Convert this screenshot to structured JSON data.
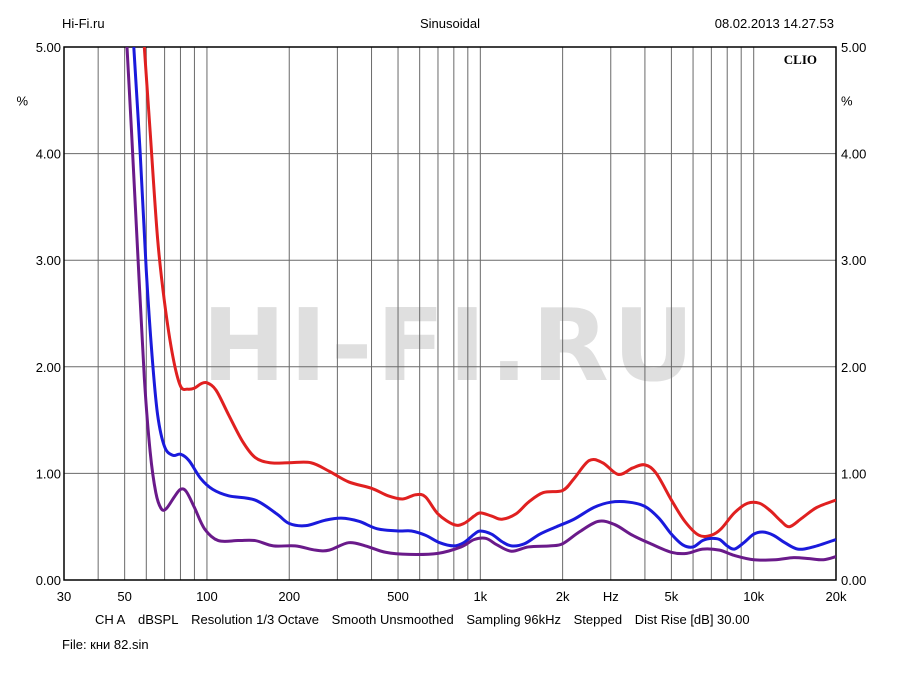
{
  "header": {
    "site": "Hi-Fi.ru",
    "mode": "Sinusoidal",
    "datetime": "08.02.2013 14.27.53"
  },
  "brand_label": "CLIO",
  "watermark_text": "HI-FI.RU",
  "settings": {
    "channel": "CH A",
    "unit": "dBSPL",
    "resolution": "Resolution 1/3 Octave",
    "smoothing": "Smooth Unsmoothed",
    "sampling": "Sampling 96kHz",
    "stepping": "Stepped",
    "dist_rise": "Dist Rise [dB] 30.00"
  },
  "file_label": "File: кни 82.sin",
  "chart_data": {
    "type": "line",
    "x_scale": "log",
    "xlim": [
      30,
      20000
    ],
    "ylim": [
      0,
      5
    ],
    "grid": true,
    "x_tick_labels": [
      {
        "value": 30,
        "label": "30"
      },
      {
        "value": 50,
        "label": "50"
      },
      {
        "value": 100,
        "label": "100"
      },
      {
        "value": 200,
        "label": "200"
      },
      {
        "value": 500,
        "label": "500"
      },
      {
        "value": 1000,
        "label": "1k"
      },
      {
        "value": 2000,
        "label": "2k"
      },
      {
        "value": 5000,
        "label": "5k"
      },
      {
        "value": 10000,
        "label": "10k"
      },
      {
        "value": 20000,
        "label": "20k"
      }
    ],
    "x_unit_label": "Hz",
    "y_ticks": [
      "0.00",
      "1.00",
      "2.00",
      "3.00",
      "4.00",
      "5.00"
    ],
    "y_unit_label": "%",
    "series": [
      {
        "color": "#e02020",
        "points": [
          [
            59,
            5.0
          ],
          [
            62,
            4.2
          ],
          [
            66,
            3.2
          ],
          [
            70,
            2.6
          ],
          [
            75,
            2.1
          ],
          [
            80,
            1.82
          ],
          [
            85,
            1.79
          ],
          [
            90,
            1.8
          ],
          [
            95,
            1.84
          ],
          [
            100,
            1.85
          ],
          [
            108,
            1.78
          ],
          [
            120,
            1.55
          ],
          [
            135,
            1.3
          ],
          [
            150,
            1.15
          ],
          [
            170,
            1.1
          ],
          [
            200,
            1.1
          ],
          [
            240,
            1.1
          ],
          [
            280,
            1.02
          ],
          [
            330,
            0.92
          ],
          [
            400,
            0.86
          ],
          [
            460,
            0.79
          ],
          [
            520,
            0.76
          ],
          [
            580,
            0.8
          ],
          [
            630,
            0.78
          ],
          [
            700,
            0.62
          ],
          [
            800,
            0.52
          ],
          [
            870,
            0.53
          ],
          [
            950,
            0.6
          ],
          [
            1000,
            0.63
          ],
          [
            1100,
            0.6
          ],
          [
            1200,
            0.57
          ],
          [
            1350,
            0.62
          ],
          [
            1500,
            0.73
          ],
          [
            1700,
            0.82
          ],
          [
            2000,
            0.84
          ],
          [
            2200,
            0.95
          ],
          [
            2500,
            1.12
          ],
          [
            2800,
            1.1
          ],
          [
            3200,
            0.99
          ],
          [
            3600,
            1.05
          ],
          [
            4000,
            1.08
          ],
          [
            4400,
            1.0
          ],
          [
            5000,
            0.75
          ],
          [
            5600,
            0.55
          ],
          [
            6300,
            0.42
          ],
          [
            7000,
            0.42
          ],
          [
            7600,
            0.48
          ],
          [
            8500,
            0.63
          ],
          [
            9500,
            0.72
          ],
          [
            10500,
            0.72
          ],
          [
            11500,
            0.65
          ],
          [
            12500,
            0.56
          ],
          [
            13500,
            0.5
          ],
          [
            15000,
            0.58
          ],
          [
            17000,
            0.68
          ],
          [
            20000,
            0.75
          ]
        ]
      },
      {
        "color": "#1a1adc",
        "points": [
          [
            54,
            5.0
          ],
          [
            57,
            4.0
          ],
          [
            60,
            2.9
          ],
          [
            63,
            2.1
          ],
          [
            66,
            1.55
          ],
          [
            70,
            1.25
          ],
          [
            75,
            1.17
          ],
          [
            80,
            1.18
          ],
          [
            86,
            1.12
          ],
          [
            95,
            0.95
          ],
          [
            105,
            0.85
          ],
          [
            120,
            0.79
          ],
          [
            150,
            0.75
          ],
          [
            180,
            0.62
          ],
          [
            200,
            0.53
          ],
          [
            230,
            0.51
          ],
          [
            270,
            0.56
          ],
          [
            310,
            0.58
          ],
          [
            360,
            0.55
          ],
          [
            420,
            0.48
          ],
          [
            500,
            0.46
          ],
          [
            560,
            0.46
          ],
          [
            630,
            0.42
          ],
          [
            710,
            0.35
          ],
          [
            800,
            0.32
          ],
          [
            870,
            0.35
          ],
          [
            950,
            0.43
          ],
          [
            1000,
            0.46
          ],
          [
            1100,
            0.43
          ],
          [
            1200,
            0.36
          ],
          [
            1300,
            0.32
          ],
          [
            1450,
            0.34
          ],
          [
            1650,
            0.43
          ],
          [
            1900,
            0.5
          ],
          [
            2200,
            0.57
          ],
          [
            2600,
            0.68
          ],
          [
            3000,
            0.73
          ],
          [
            3500,
            0.73
          ],
          [
            4000,
            0.69
          ],
          [
            4500,
            0.58
          ],
          [
            5000,
            0.43
          ],
          [
            5500,
            0.33
          ],
          [
            6000,
            0.31
          ],
          [
            6500,
            0.37
          ],
          [
            7000,
            0.39
          ],
          [
            7500,
            0.38
          ],
          [
            8000,
            0.32
          ],
          [
            8500,
            0.29
          ],
          [
            9200,
            0.35
          ],
          [
            10000,
            0.43
          ],
          [
            10800,
            0.45
          ],
          [
            11800,
            0.42
          ],
          [
            13000,
            0.35
          ],
          [
            14500,
            0.29
          ],
          [
            16500,
            0.31
          ],
          [
            20000,
            0.38
          ]
        ]
      },
      {
        "color": "#6a1a8a",
        "points": [
          [
            51,
            5.0
          ],
          [
            53,
            4.2
          ],
          [
            56,
            3.0
          ],
          [
            59,
            1.9
          ],
          [
            62,
            1.2
          ],
          [
            65,
            0.82
          ],
          [
            68,
            0.67
          ],
          [
            71,
            0.67
          ],
          [
            76,
            0.78
          ],
          [
            80,
            0.85
          ],
          [
            84,
            0.83
          ],
          [
            90,
            0.68
          ],
          [
            98,
            0.48
          ],
          [
            110,
            0.37
          ],
          [
            130,
            0.37
          ],
          [
            150,
            0.37
          ],
          [
            175,
            0.32
          ],
          [
            210,
            0.32
          ],
          [
            250,
            0.28
          ],
          [
            280,
            0.28
          ],
          [
            330,
            0.35
          ],
          [
            380,
            0.32
          ],
          [
            450,
            0.26
          ],
          [
            550,
            0.24
          ],
          [
            700,
            0.25
          ],
          [
            850,
            0.31
          ],
          [
            950,
            0.38
          ],
          [
            1050,
            0.39
          ],
          [
            1150,
            0.33
          ],
          [
            1300,
            0.27
          ],
          [
            1500,
            0.31
          ],
          [
            1800,
            0.32
          ],
          [
            2000,
            0.34
          ],
          [
            2300,
            0.45
          ],
          [
            2700,
            0.55
          ],
          [
            3100,
            0.52
          ],
          [
            3600,
            0.42
          ],
          [
            4200,
            0.34
          ],
          [
            5000,
            0.26
          ],
          [
            5700,
            0.25
          ],
          [
            6500,
            0.29
          ],
          [
            7500,
            0.28
          ],
          [
            8500,
            0.23
          ],
          [
            10000,
            0.19
          ],
          [
            12000,
            0.19
          ],
          [
            14000,
            0.21
          ],
          [
            16000,
            0.2
          ],
          [
            18000,
            0.19
          ],
          [
            20000,
            0.22
          ]
        ]
      }
    ]
  }
}
